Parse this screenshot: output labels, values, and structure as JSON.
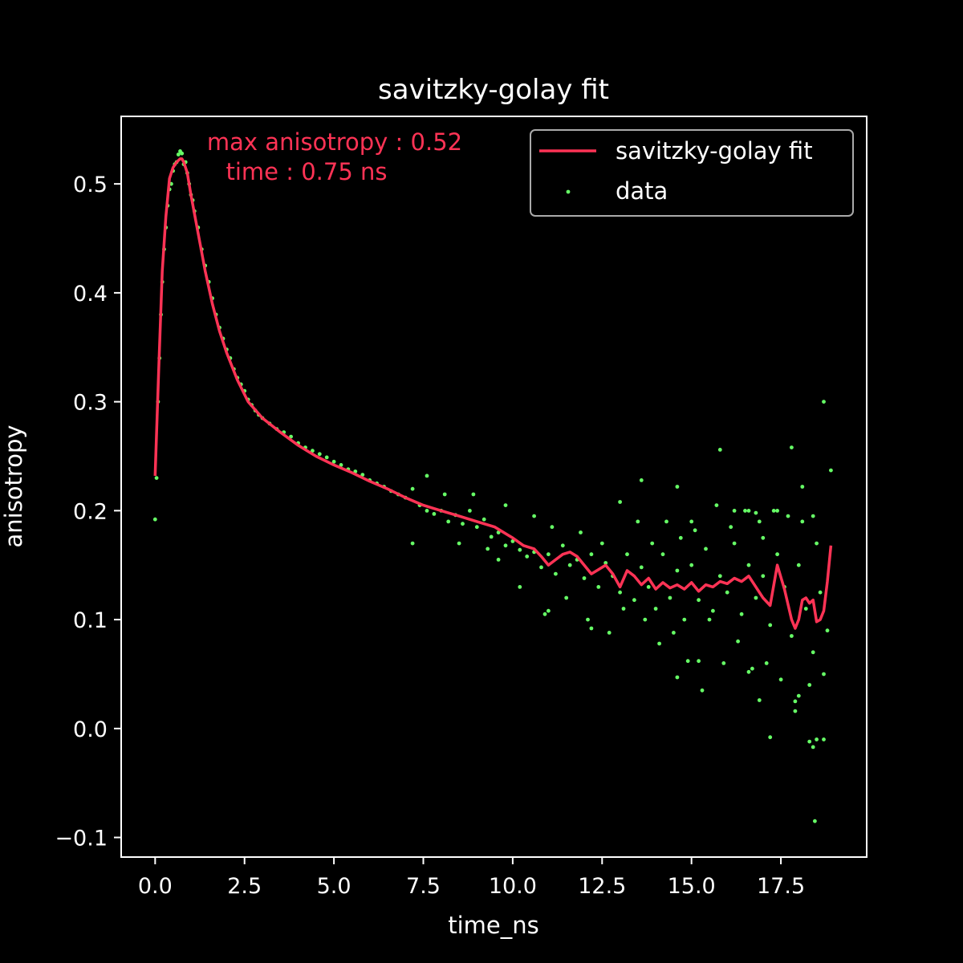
{
  "chart_data": {
    "type": "scatter",
    "title": "savitzky-golay fit",
    "xlabel": "time_ns",
    "ylabel": "anisotropy",
    "xlim": [
      -0.95,
      19.9
    ],
    "ylim": [
      -0.118,
      0.562
    ],
    "xticks": [
      0.0,
      2.5,
      5.0,
      7.5,
      10.0,
      12.5,
      15.0,
      17.5
    ],
    "xtick_labels": [
      "0.0",
      "2.5",
      "5.0",
      "7.5",
      "10.0",
      "12.5",
      "15.0",
      "17.5"
    ],
    "yticks": [
      -0.1,
      0.0,
      0.1,
      0.2,
      0.3,
      0.4,
      0.5
    ],
    "ytick_labels": [
      "−0.1",
      "0.0",
      "0.1",
      "0.2",
      "0.3",
      "0.4",
      "0.5"
    ],
    "grid": false,
    "legend": {
      "position": "top-right",
      "entries": [
        "savitzky-golay fit",
        "data"
      ]
    },
    "annotation": {
      "line1": "max anisotropy : 0.52",
      "line2": "time : 0.75 ns",
      "x": 0.75,
      "y": 0.52
    },
    "colors": {
      "background": "#000000",
      "axes": "#ffffff",
      "fit": "#ff3355",
      "data": "#66ff66",
      "legend_border": "#aaaaaa"
    },
    "series": [
      {
        "name": "savitzky-golay fit",
        "kind": "line",
        "x": [
          0.0,
          0.1,
          0.2,
          0.3,
          0.4,
          0.5,
          0.6,
          0.7,
          0.75,
          0.8,
          0.9,
          1.0,
          1.2,
          1.4,
          1.6,
          1.8,
          2.0,
          2.3,
          2.6,
          3.0,
          3.5,
          4.0,
          4.5,
          5.0,
          5.5,
          6.0,
          6.5,
          7.0,
          7.5,
          8.0,
          8.5,
          9.0,
          9.5,
          10.0,
          10.3,
          10.6,
          10.8,
          11.0,
          11.2,
          11.4,
          11.6,
          11.8,
          12.0,
          12.2,
          12.4,
          12.6,
          12.8,
          13.0,
          13.2,
          13.4,
          13.6,
          13.8,
          14.0,
          14.2,
          14.4,
          14.6,
          14.8,
          15.0,
          15.2,
          15.4,
          15.6,
          15.8,
          16.0,
          16.2,
          16.4,
          16.6,
          16.8,
          17.0,
          17.2,
          17.4,
          17.6,
          17.8,
          17.9,
          18.0,
          18.1,
          18.2,
          18.3,
          18.4,
          18.5,
          18.6,
          18.7,
          18.8,
          18.9
        ],
        "y": [
          0.232,
          0.33,
          0.42,
          0.47,
          0.505,
          0.515,
          0.52,
          0.523,
          0.523,
          0.52,
          0.51,
          0.49,
          0.455,
          0.42,
          0.39,
          0.365,
          0.345,
          0.32,
          0.3,
          0.285,
          0.272,
          0.26,
          0.25,
          0.242,
          0.235,
          0.227,
          0.22,
          0.212,
          0.205,
          0.2,
          0.195,
          0.19,
          0.185,
          0.175,
          0.168,
          0.165,
          0.158,
          0.15,
          0.155,
          0.16,
          0.162,
          0.158,
          0.15,
          0.142,
          0.146,
          0.15,
          0.142,
          0.13,
          0.145,
          0.14,
          0.132,
          0.138,
          0.128,
          0.134,
          0.129,
          0.132,
          0.128,
          0.134,
          0.126,
          0.132,
          0.13,
          0.135,
          0.133,
          0.138,
          0.135,
          0.14,
          0.13,
          0.12,
          0.113,
          0.15,
          0.128,
          0.1,
          0.092,
          0.1,
          0.118,
          0.12,
          0.115,
          0.118,
          0.098,
          0.1,
          0.108,
          0.135,
          0.168
        ]
      },
      {
        "name": "data",
        "kind": "scatter",
        "points": [
          [
            0.0,
            0.192
          ],
          [
            0.04,
            0.23
          ],
          [
            0.08,
            0.3
          ],
          [
            0.12,
            0.34
          ],
          [
            0.16,
            0.38
          ],
          [
            0.2,
            0.41
          ],
          [
            0.25,
            0.44
          ],
          [
            0.3,
            0.46
          ],
          [
            0.35,
            0.48
          ],
          [
            0.4,
            0.495
          ],
          [
            0.45,
            0.5
          ],
          [
            0.5,
            0.512
          ],
          [
            0.55,
            0.518
          ],
          [
            0.6,
            0.52
          ],
          [
            0.65,
            0.527
          ],
          [
            0.7,
            0.53
          ],
          [
            0.75,
            0.528
          ],
          [
            0.8,
            0.518
          ],
          [
            0.85,
            0.52
          ],
          [
            0.9,
            0.51
          ],
          [
            0.95,
            0.5
          ],
          [
            1.0,
            0.49
          ],
          [
            1.05,
            0.485
          ],
          [
            1.1,
            0.475
          ],
          [
            1.2,
            0.46
          ],
          [
            1.3,
            0.44
          ],
          [
            1.4,
            0.425
          ],
          [
            1.5,
            0.41
          ],
          [
            1.6,
            0.395
          ],
          [
            1.7,
            0.38
          ],
          [
            1.8,
            0.368
          ],
          [
            1.9,
            0.358
          ],
          [
            2.0,
            0.348
          ],
          [
            2.1,
            0.34
          ],
          [
            2.2,
            0.33
          ],
          [
            2.3,
            0.322
          ],
          [
            2.4,
            0.316
          ],
          [
            2.5,
            0.31
          ],
          [
            2.6,
            0.302
          ],
          [
            2.7,
            0.297
          ],
          [
            2.8,
            0.292
          ],
          [
            2.9,
            0.288
          ],
          [
            3.0,
            0.285
          ],
          [
            3.2,
            0.28
          ],
          [
            3.4,
            0.275
          ],
          [
            3.6,
            0.272
          ],
          [
            3.8,
            0.268
          ],
          [
            4.0,
            0.262
          ],
          [
            4.2,
            0.258
          ],
          [
            4.4,
            0.255
          ],
          [
            4.6,
            0.252
          ],
          [
            4.8,
            0.249
          ],
          [
            5.0,
            0.245
          ],
          [
            5.2,
            0.242
          ],
          [
            5.4,
            0.238
          ],
          [
            5.6,
            0.236
          ],
          [
            5.8,
            0.233
          ],
          [
            6.0,
            0.228
          ],
          [
            6.2,
            0.225
          ],
          [
            6.4,
            0.222
          ],
          [
            6.6,
            0.218
          ],
          [
            6.8,
            0.215
          ],
          [
            7.0,
            0.212
          ],
          [
            7.2,
            0.22
          ],
          [
            7.4,
            0.205
          ],
          [
            7.6,
            0.2
          ],
          [
            7.8,
            0.197
          ],
          [
            8.0,
            0.2
          ],
          [
            8.2,
            0.19
          ],
          [
            8.4,
            0.196
          ],
          [
            8.6,
            0.188
          ],
          [
            8.8,
            0.2
          ],
          [
            9.0,
            0.185
          ],
          [
            9.2,
            0.192
          ],
          [
            9.4,
            0.176
          ],
          [
            9.6,
            0.18
          ],
          [
            9.8,
            0.168
          ],
          [
            10.0,
            0.172
          ],
          [
            10.2,
            0.164
          ],
          [
            10.4,
            0.158
          ],
          [
            10.6,
            0.162
          ],
          [
            10.8,
            0.148
          ],
          [
            11.0,
            0.16
          ],
          [
            11.2,
            0.142
          ],
          [
            11.4,
            0.168
          ],
          [
            11.6,
            0.15
          ],
          [
            11.8,
            0.155
          ],
          [
            12.0,
            0.138
          ],
          [
            12.2,
            0.16
          ],
          [
            12.4,
            0.13
          ],
          [
            12.6,
            0.152
          ],
          [
            12.8,
            0.14
          ],
          [
            13.0,
            0.125
          ],
          [
            13.2,
            0.16
          ],
          [
            13.4,
            0.118
          ],
          [
            13.6,
            0.148
          ],
          [
            13.8,
            0.13
          ],
          [
            14.0,
            0.11
          ],
          [
            14.2,
            0.16
          ],
          [
            14.4,
            0.12
          ],
          [
            14.6,
            0.145
          ],
          [
            14.8,
            0.1
          ],
          [
            15.0,
            0.15
          ],
          [
            15.2,
            0.118
          ],
          [
            15.4,
            0.165
          ],
          [
            15.6,
            0.108
          ],
          [
            15.8,
            0.14
          ],
          [
            16.0,
            0.125
          ],
          [
            16.2,
            0.17
          ],
          [
            16.4,
            0.105
          ],
          [
            16.6,
            0.15
          ],
          [
            16.8,
            0.12
          ],
          [
            17.0,
            0.175
          ],
          [
            17.2,
            0.095
          ],
          [
            17.4,
            0.16
          ],
          [
            17.6,
            0.13
          ],
          [
            17.8,
            0.085
          ],
          [
            18.0,
            0.15
          ],
          [
            18.2,
            0.11
          ],
          [
            18.4,
            0.07
          ],
          [
            18.6,
            0.125
          ],
          [
            18.8,
            0.09
          ],
          [
            7.2,
            0.17
          ],
          [
            7.6,
            0.232
          ],
          [
            8.1,
            0.215
          ],
          [
            8.5,
            0.17
          ],
          [
            8.9,
            0.215
          ],
          [
            9.3,
            0.165
          ],
          [
            9.8,
            0.205
          ],
          [
            10.2,
            0.13
          ],
          [
            10.6,
            0.195
          ],
          [
            10.9,
            0.105
          ],
          [
            11.1,
            0.185
          ],
          [
            11.5,
            0.12
          ],
          [
            11.9,
            0.18
          ],
          [
            12.1,
            0.1
          ],
          [
            12.5,
            0.17
          ],
          [
            12.7,
            0.088
          ],
          [
            13.1,
            0.11
          ],
          [
            13.5,
            0.19
          ],
          [
            13.7,
            0.1
          ],
          [
            13.9,
            0.17
          ],
          [
            14.1,
            0.078
          ],
          [
            14.3,
            0.19
          ],
          [
            14.5,
            0.088
          ],
          [
            14.7,
            0.175
          ],
          [
            14.9,
            0.062
          ],
          [
            15.1,
            0.182
          ],
          [
            15.3,
            0.035
          ],
          [
            15.5,
            0.1
          ],
          [
            15.7,
            0.205
          ],
          [
            15.9,
            0.06
          ],
          [
            16.1,
            0.185
          ],
          [
            16.3,
            0.08
          ],
          [
            16.5,
            0.2
          ],
          [
            16.7,
            0.055
          ],
          [
            16.9,
            0.19
          ],
          [
            17.1,
            0.06
          ],
          [
            17.3,
            0.2
          ],
          [
            17.5,
            0.045
          ],
          [
            17.7,
            0.195
          ],
          [
            17.9,
            0.025
          ],
          [
            18.1,
            0.19
          ],
          [
            18.3,
            0.04
          ],
          [
            18.5,
            0.17
          ],
          [
            18.7,
            0.05
          ],
          [
            15.0,
            0.19
          ],
          [
            15.8,
            0.256
          ],
          [
            16.2,
            0.2
          ],
          [
            16.6,
            0.2
          ],
          [
            17.0,
            0.14
          ],
          [
            17.4,
            0.2
          ],
          [
            17.8,
            0.258
          ],
          [
            18.1,
            0.222
          ],
          [
            18.7,
            0.3
          ],
          [
            18.9,
            0.237
          ],
          [
            13.0,
            0.208
          ],
          [
            13.6,
            0.228
          ],
          [
            14.6,
            0.222
          ],
          [
            16.8,
            0.198
          ],
          [
            18.4,
            0.195
          ],
          [
            14.6,
            0.047
          ],
          [
            15.2,
            0.062
          ],
          [
            16.6,
            0.052
          ],
          [
            16.9,
            0.026
          ],
          [
            17.2,
            -0.008
          ],
          [
            17.9,
            0.016
          ],
          [
            18.0,
            0.03
          ],
          [
            18.3,
            -0.012
          ],
          [
            18.4,
            -0.017
          ],
          [
            18.5,
            -0.01
          ],
          [
            18.7,
            -0.01
          ],
          [
            18.45,
            -0.085
          ],
          [
            12.2,
            0.092
          ],
          [
            11.0,
            0.108
          ],
          [
            9.6,
            0.155
          ]
        ]
      }
    ]
  }
}
